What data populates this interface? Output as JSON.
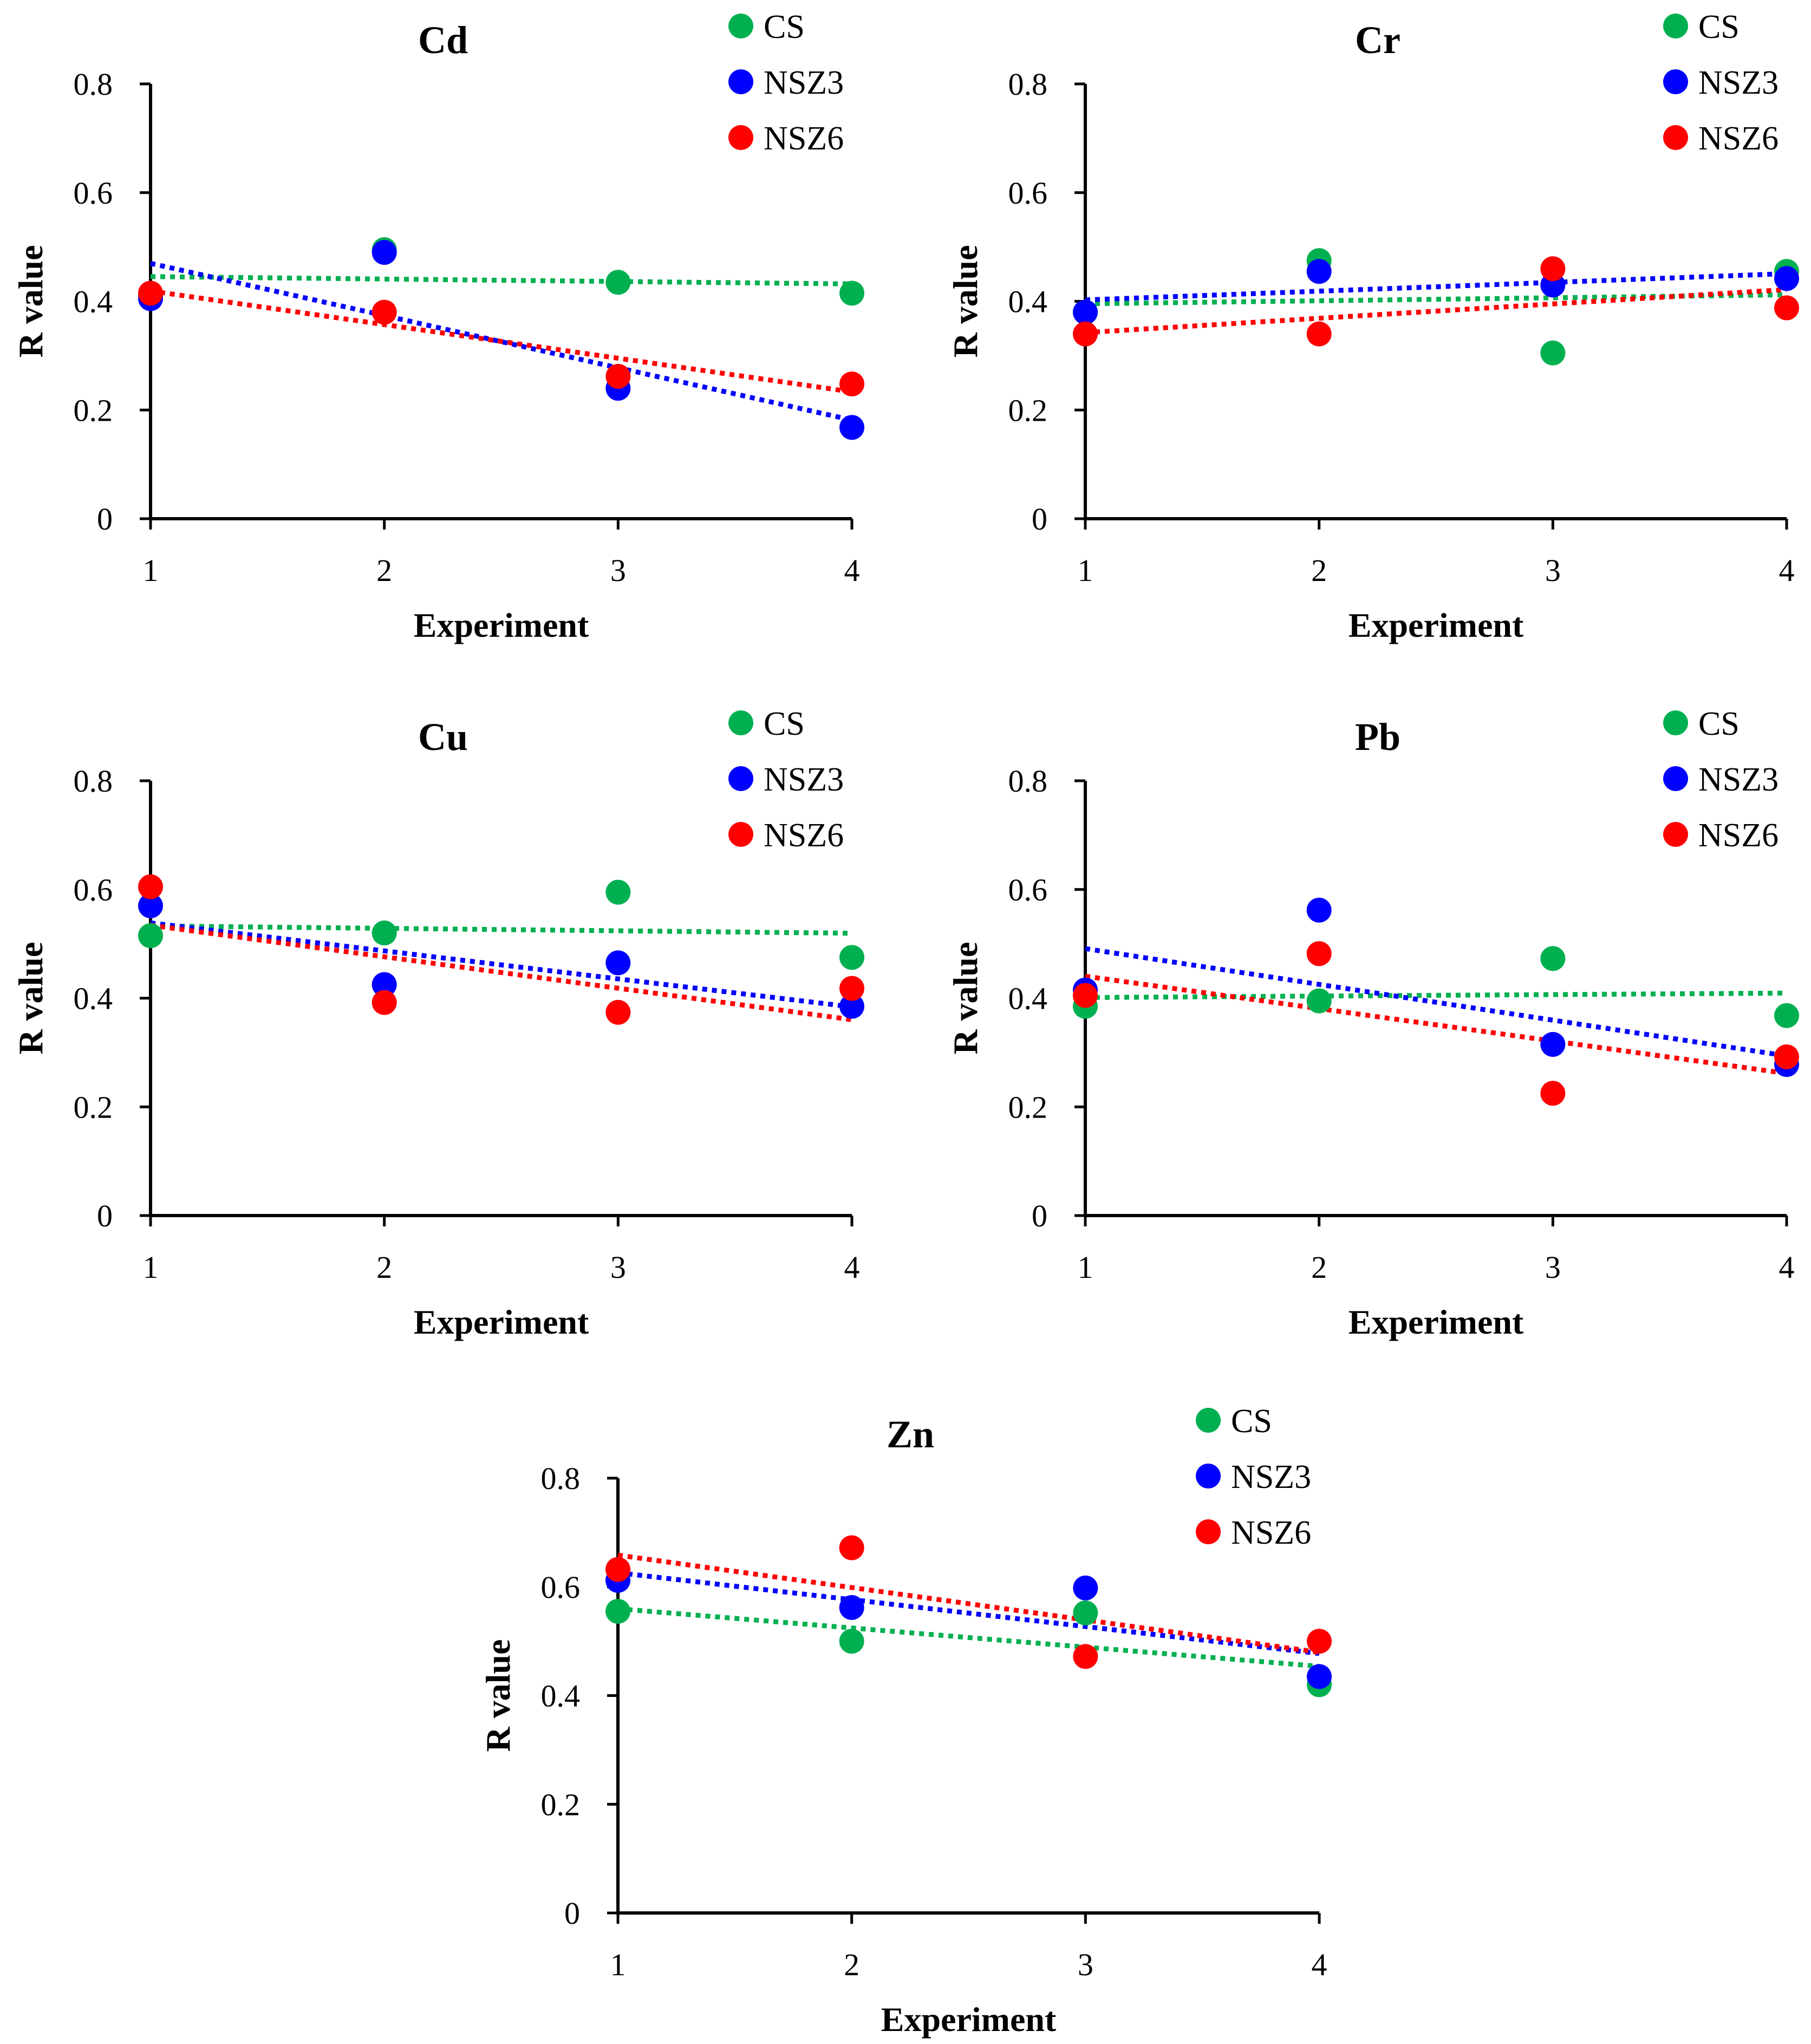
{
  "colors": {
    "CS": "#00b050",
    "NSZ3": "#0000ff",
    "NSZ6": "#ff0000",
    "axis": "#000000"
  },
  "chart_data": [
    {
      "type": "scatter",
      "title": "Cd",
      "xlabel": "Experiment",
      "ylabel": "R value",
      "x": [
        1,
        2,
        3,
        4
      ],
      "xticks": [
        "1",
        "2",
        "3",
        "4"
      ],
      "yticks": [
        "0",
        "0.2",
        "0.4",
        "0.6",
        "0.8"
      ],
      "ylim": [
        0,
        0.8
      ],
      "trendline": "linear-dotted",
      "series": [
        {
          "name": "CS",
          "values": [
            0.41,
            0.495,
            0.435,
            0.415
          ]
        },
        {
          "name": "NSZ3",
          "values": [
            0.405,
            0.49,
            0.24,
            0.168
          ]
        },
        {
          "name": "NSZ6",
          "values": [
            0.415,
            0.38,
            0.262,
            0.248
          ]
        }
      ]
    },
    {
      "type": "scatter",
      "title": "Cr",
      "xlabel": "Experiment",
      "ylabel": "R value",
      "x": [
        1,
        2,
        3,
        4
      ],
      "xticks": [
        "1",
        "2",
        "3",
        "4"
      ],
      "yticks": [
        "0",
        "0.2",
        "0.4",
        "0.6",
        "0.8"
      ],
      "ylim": [
        0,
        0.8
      ],
      "trendline": "linear-dotted",
      "series": [
        {
          "name": "CS",
          "values": [
            0.38,
            0.475,
            0.305,
            0.455
          ]
        },
        {
          "name": "NSZ3",
          "values": [
            0.38,
            0.455,
            0.43,
            0.442
          ]
        },
        {
          "name": "NSZ6",
          "values": [
            0.34,
            0.34,
            0.46,
            0.388
          ]
        }
      ]
    },
    {
      "type": "scatter",
      "title": "Cu",
      "xlabel": "Experiment",
      "ylabel": "R value",
      "x": [
        1,
        2,
        3,
        4
      ],
      "xticks": [
        "1",
        "2",
        "3",
        "4"
      ],
      "yticks": [
        "0",
        "0.2",
        "0.4",
        "0.6",
        "0.8"
      ],
      "ylim": [
        0,
        0.8
      ],
      "trendline": "linear-dotted",
      "series": [
        {
          "name": "CS",
          "values": [
            0.515,
            0.52,
            0.595,
            0.475
          ]
        },
        {
          "name": "NSZ3",
          "values": [
            0.57,
            0.425,
            0.465,
            0.385
          ]
        },
        {
          "name": "NSZ6",
          "values": [
            0.605,
            0.392,
            0.374,
            0.418
          ]
        }
      ]
    },
    {
      "type": "scatter",
      "title": "Pb",
      "xlabel": "Experiment",
      "ylabel": "R value",
      "x": [
        1,
        2,
        3,
        4
      ],
      "xticks": [
        "1",
        "2",
        "3",
        "4"
      ],
      "yticks": [
        "0",
        "0.2",
        "0.4",
        "0.6",
        "0.8"
      ],
      "ylim": [
        0,
        0.8
      ],
      "trendline": "linear-dotted",
      "series": [
        {
          "name": "CS",
          "values": [
            0.385,
            0.395,
            0.473,
            0.368
          ]
        },
        {
          "name": "NSZ3",
          "values": [
            0.415,
            0.562,
            0.315,
            0.278
          ]
        },
        {
          "name": "NSZ6",
          "values": [
            0.405,
            0.482,
            0.225,
            0.292
          ]
        }
      ]
    },
    {
      "type": "scatter",
      "title": "Zn",
      "xlabel": "Experiment",
      "ylabel": "R value",
      "x": [
        1,
        2,
        3,
        4
      ],
      "xticks": [
        "1",
        "2",
        "3",
        "4"
      ],
      "yticks": [
        "0",
        "0.2",
        "0.4",
        "0.6",
        "0.8"
      ],
      "ylim": [
        0,
        0.8
      ],
      "trendline": "linear-dotted",
      "series": [
        {
          "name": "CS",
          "values": [
            0.555,
            0.5,
            0.552,
            0.42
          ]
        },
        {
          "name": "NSZ3",
          "values": [
            0.612,
            0.562,
            0.598,
            0.435
          ]
        },
        {
          "name": "NSZ6",
          "values": [
            0.632,
            0.672,
            0.472,
            0.5
          ]
        }
      ]
    }
  ]
}
